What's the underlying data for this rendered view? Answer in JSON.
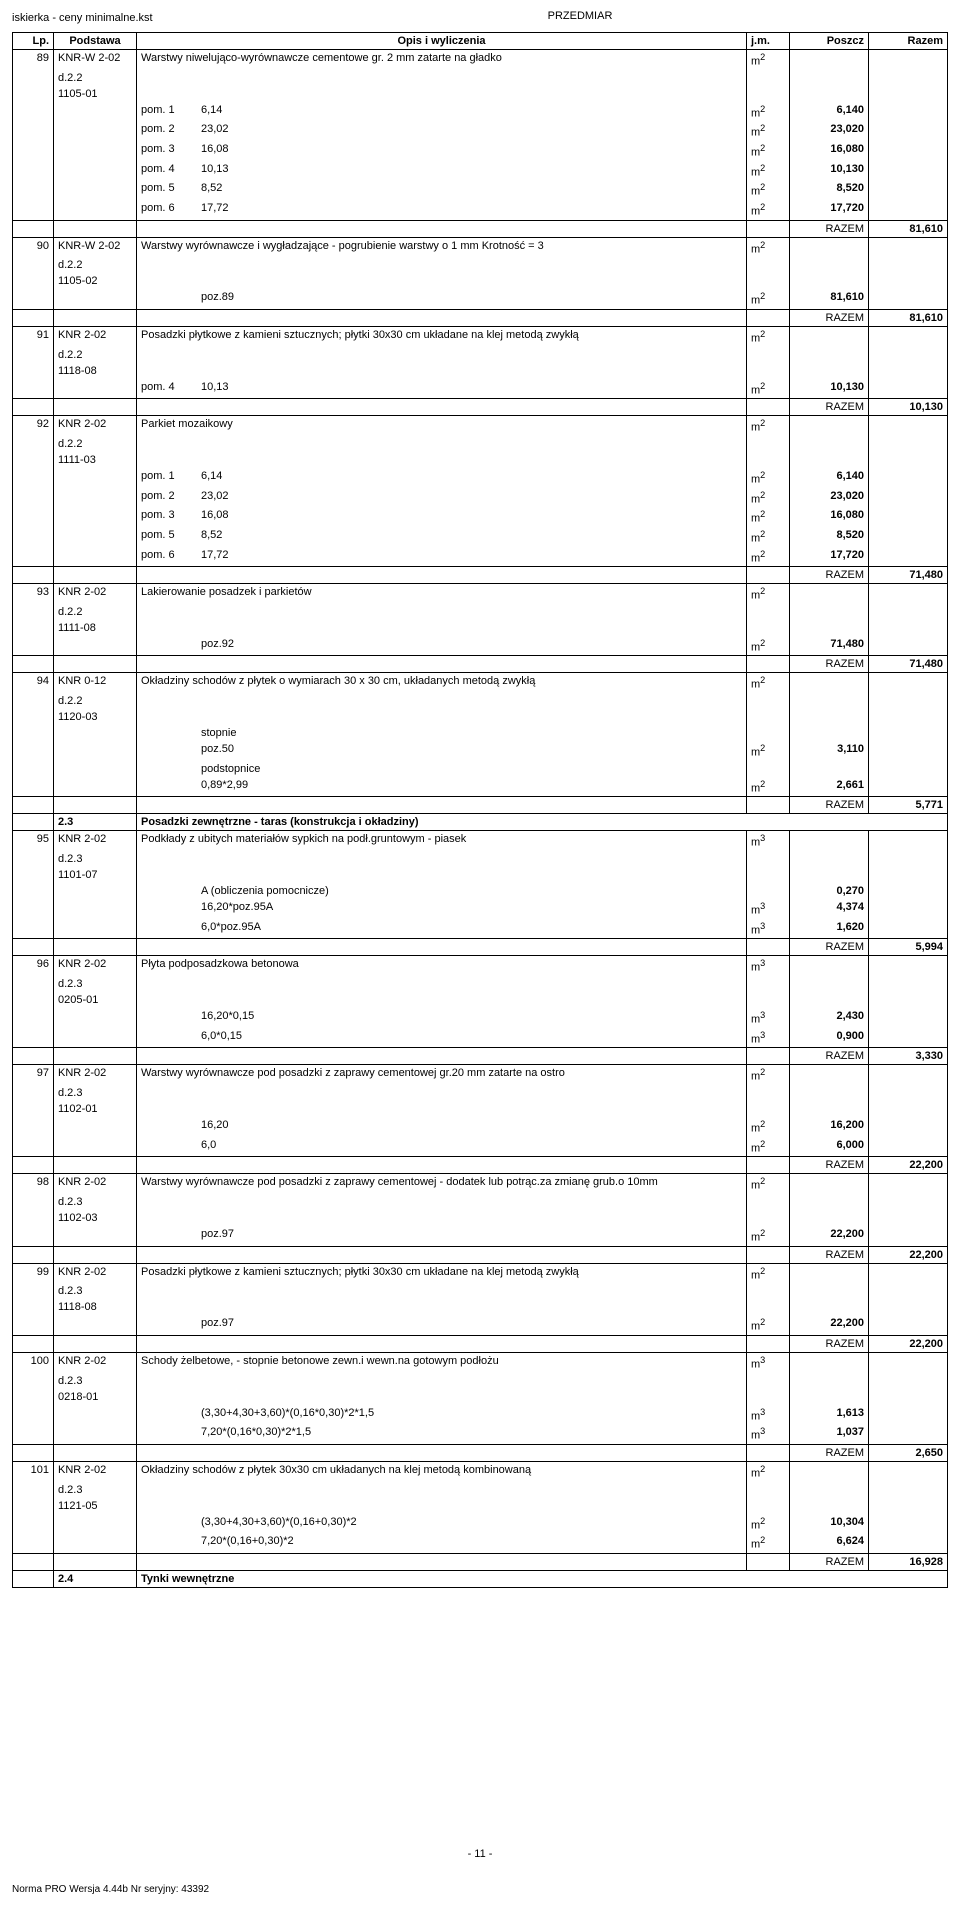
{
  "header": {
    "file": "iskierka - ceny minimalne.kst",
    "title": "PRZEDMIAR"
  },
  "cols": {
    "lp": "Lp.",
    "pod": "Podstawa",
    "opis": "Opis i wyliczenia",
    "jm": "j.m.",
    "poszcz": "Poszcz",
    "razem": "Razem"
  },
  "rlabel": "RAZEM",
  "g89": {
    "lp": "89",
    "pod1": "KNR-W 2-02",
    "pod2": "d.2.2",
    "pod3": "1105-01",
    "opis": "Warstwy niwelująco-wyrównawcze cementowe gr. 2 mm zatarte na gładko",
    "lines": [
      {
        "l": "pom. 1",
        "v": "6,14",
        "u": "m2",
        "p": "6,140"
      },
      {
        "l": "pom. 2",
        "v": "23,02",
        "u": "m2",
        "p": "23,020"
      },
      {
        "l": "pom. 3",
        "v": "16,08",
        "u": "m2",
        "p": "16,080"
      },
      {
        "l": "pom. 4",
        "v": "10,13",
        "u": "m2",
        "p": "10,130"
      },
      {
        "l": "pom. 5",
        "v": "8,52",
        "u": "m2",
        "p": "8,520"
      },
      {
        "l": "pom. 6",
        "v": "17,72",
        "u": "m2",
        "p": "17,720"
      }
    ],
    "razem": "81,610"
  },
  "g90": {
    "lp": "90",
    "pod1": "KNR-W 2-02",
    "pod2": "d.2.2",
    "pod3": "1105-02",
    "opis": "Warstwy wyrównawcze i wygładzające - pogrubienie warstwy o 1 mm Krotność = 3",
    "lines": [
      {
        "l": "",
        "v": "poz.89",
        "u": "m2",
        "p": "81,610"
      }
    ],
    "razem": "81,610"
  },
  "g91": {
    "lp": "91",
    "pod1": "KNR 2-02",
    "pod2": "d.2.2",
    "pod3": "1118-08",
    "opis": "Posadzki płytkowe z kamieni sztucznych; płytki 30x30 cm  układane na klej metodą zwykłą",
    "lines": [
      {
        "l": "pom. 4",
        "v": "10,13",
        "u": "m2",
        "p": "10,130"
      }
    ],
    "razem": "10,130"
  },
  "g92": {
    "lp": "92",
    "pod1": "KNR 2-02",
    "pod2": "d.2.2",
    "pod3": "1111-03",
    "opis": "Parkiet mozaikowy",
    "lines": [
      {
        "l": "pom. 1",
        "v": "6,14",
        "u": "m2",
        "p": "6,140"
      },
      {
        "l": "pom. 2",
        "v": "23,02",
        "u": "m2",
        "p": "23,020"
      },
      {
        "l": "pom. 3",
        "v": "16,08",
        "u": "m2",
        "p": "16,080"
      },
      {
        "l": "pom. 5",
        "v": "8,52",
        "u": "m2",
        "p": "8,520"
      },
      {
        "l": "pom. 6",
        "v": "17,72",
        "u": "m2",
        "p": "17,720"
      }
    ],
    "razem": "71,480"
  },
  "g93": {
    "lp": "93",
    "pod1": "KNR 2-02",
    "pod2": "d.2.2",
    "pod3": "1111-08",
    "opis": "Lakierowanie posadzek i parkietów",
    "lines": [
      {
        "l": "",
        "v": "poz.92",
        "u": "m2",
        "p": "71,480"
      }
    ],
    "razem": "71,480"
  },
  "g94": {
    "lp": "94",
    "pod1": "KNR 0-12",
    "pod2": "d.2.2",
    "pod3": "1120-03",
    "opis": "Okładziny schodów z płytek o wymiarach 30 x 30 cm, układanych metodą zwykłą",
    "lines": [
      {
        "l": "",
        "v": "stopnie",
        "u": "",
        "p": ""
      },
      {
        "l": "",
        "v": "poz.50",
        "u": "m2",
        "p": "3,110"
      },
      {
        "l": "",
        "v": "podstopnice",
        "u": "",
        "p": ""
      },
      {
        "l": "",
        "v": "0,89*2,99",
        "u": "m2",
        "p": "2,661"
      }
    ],
    "razem": "5,771"
  },
  "s23": {
    "num": "2.3",
    "title": "Posadzki zewnętrzne - taras (konstrukcja i okładziny)"
  },
  "g95": {
    "lp": "95",
    "pod1": "KNR 2-02",
    "pod2": "d.2.3",
    "pod3": "1101-07",
    "opis": "Podkłady z ubitych materiałów sypkich na podł.gruntowym - piasek",
    "u0": "m3",
    "lines": [
      {
        "l": "",
        "v": "A  (obliczenia pomocnicze)",
        "u": "",
        "p": "0,270"
      },
      {
        "l": "",
        "v": "16,20*poz.95A",
        "u": "m3",
        "p": "4,374"
      },
      {
        "l": "",
        "v": "6,0*poz.95A",
        "u": "m3",
        "p": "1,620"
      }
    ],
    "razem": "5,994"
  },
  "g96": {
    "lp": "96",
    "pod1": "KNR 2-02",
    "pod2": "d.2.3",
    "pod3": "0205-01",
    "opis": "Płyta podposadzkowa betonowa",
    "u0": "m3",
    "lines": [
      {
        "l": "",
        "v": "16,20*0,15",
        "u": "m3",
        "p": "2,430"
      },
      {
        "l": "",
        "v": "6,0*0,15",
        "u": "m3",
        "p": "0,900"
      }
    ],
    "razem": "3,330"
  },
  "g97": {
    "lp": "97",
    "pod1": "KNR 2-02",
    "pod2": "d.2.3",
    "pod3": "1102-01",
    "opis": "Warstwy wyrównawcze pod posadzki z zaprawy cementowej gr.20 mm zatarte na ostro",
    "lines": [
      {
        "l": "",
        "v": "16,20",
        "u": "m2",
        "p": "16,200"
      },
      {
        "l": "",
        "v": "6,0",
        "u": "m2",
        "p": "6,000"
      }
    ],
    "razem": "22,200"
  },
  "g98": {
    "lp": "98",
    "pod1": "KNR 2-02",
    "pod2": "d.2.3",
    "pod3": "1102-03",
    "opis": "Warstwy wyrównawcze pod posadzki z zaprawy cementowej - dodatek lub potrąc.za zmianę grub.o 10mm",
    "lines": [
      {
        "l": "",
        "v": "poz.97",
        "u": "m2",
        "p": "22,200"
      }
    ],
    "razem": "22,200"
  },
  "g99": {
    "lp": "99",
    "pod1": "KNR 2-02",
    "pod2": "d.2.3",
    "pod3": "1118-08",
    "opis": "Posadzki płytkowe z kamieni sztucznych; płytki 30x30 cm  układane na klej metodą zwykłą",
    "lines": [
      {
        "l": "",
        "v": "poz.97",
        "u": "m2",
        "p": "22,200"
      }
    ],
    "razem": "22,200"
  },
  "g100": {
    "lp": "100",
    "pod1": "KNR 2-02",
    "pod2": "d.2.3",
    "pod3": "0218-01",
    "opis": "Schody żelbetowe, - stopnie betonowe zewn.i wewn.na gotowym podłożu",
    "u0": "m3",
    "lines": [
      {
        "l": "",
        "v": "(3,30+4,30+3,60)*(0,16*0,30)*2*1,5",
        "u": "m3",
        "p": "1,613"
      },
      {
        "l": "",
        "v": "7,20*(0,16*0,30)*2*1,5",
        "u": "m3",
        "p": "1,037"
      }
    ],
    "razem": "2,650"
  },
  "g101": {
    "lp": "101",
    "pod1": "KNR 2-02",
    "pod2": "d.2.3",
    "pod3": "1121-05",
    "opis": "Okładziny schodów z płytek 30x30 cm układanych na klej metodą kombinowaną",
    "lines": [
      {
        "l": "",
        "v": "(3,30+4,30+3,60)*(0,16+0,30)*2",
        "u": "m2",
        "p": "10,304"
      },
      {
        "l": "",
        "v": "7,20*(0,16+0,30)*2",
        "u": "m2",
        "p": "6,624"
      }
    ],
    "razem": "16,928"
  },
  "s24": {
    "num": "2.4",
    "title": "Tynki wewnętrzne"
  },
  "footer": {
    "page": "- 11 -",
    "app": "Norma PRO Wersja 4.44b Nr seryjny: 43392"
  }
}
